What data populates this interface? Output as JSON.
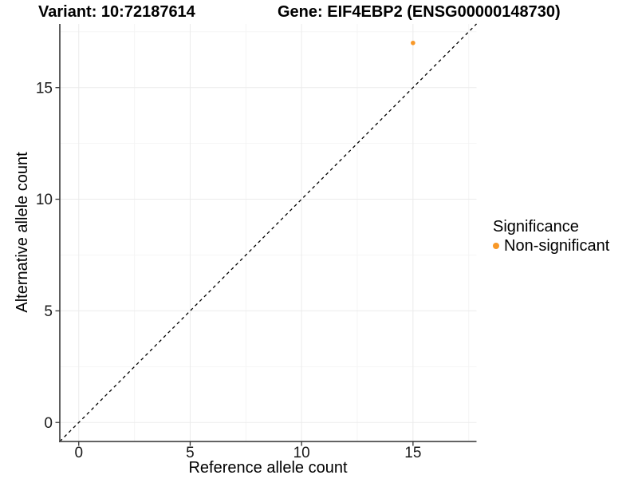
{
  "chart_data": {
    "type": "scatter",
    "title_left": "Variant: 10:72187614",
    "title_right": "Gene: EIF4EBP2 (ENSG00000148730)",
    "xlabel": "Reference allele count",
    "ylabel": "Alternative allele count",
    "xlim": [
      -0.85,
      17.85
    ],
    "ylim": [
      -0.85,
      17.85
    ],
    "x_ticks": [
      0,
      5,
      10,
      15
    ],
    "y_ticks": [
      0,
      5,
      10,
      15
    ],
    "x_minor_ticks": [
      2.5,
      7.5,
      12.5,
      17.5
    ],
    "y_minor_ticks": [
      2.5,
      7.5,
      12.5,
      17.5
    ],
    "grid": true,
    "legend": {
      "title": "Significance",
      "position": "right",
      "items": [
        {
          "label": "Non-significant",
          "color": "#F89827"
        }
      ]
    },
    "series": [
      {
        "name": "Non-significant",
        "color": "#F89827",
        "points": [
          {
            "x": 15,
            "y": 17
          }
        ]
      }
    ],
    "identity_line": {
      "style": "dashed",
      "color": "#000000",
      "slope": 1,
      "intercept": 0
    },
    "colors": {
      "background": "#FFFFFF",
      "grid_major": "#EBEBEB",
      "grid_minor": "#F4F4F4",
      "axis_line": "#4D4D4D",
      "tick_mark": "#333333",
      "text": "#000000",
      "point": "#F89827"
    }
  }
}
